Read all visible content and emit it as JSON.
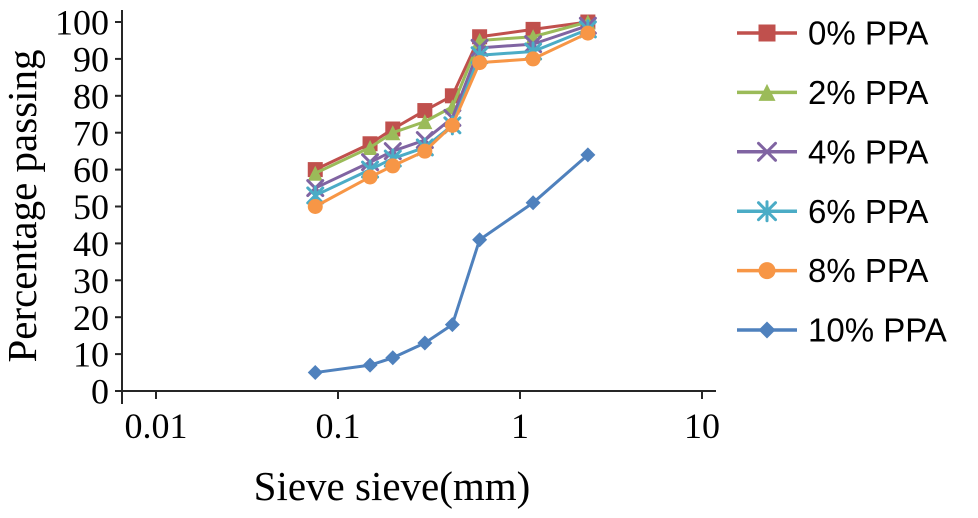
{
  "chart_data": {
    "type": "line",
    "title": "",
    "xlabel": "Sieve sieve(mm)",
    "ylabel": "Percentage  passing",
    "x_scale": "log",
    "xlim": [
      0.01,
      10
    ],
    "ylim": [
      0,
      100
    ],
    "x_ticks": [
      "0.01",
      "0.1",
      "1",
      "10"
    ],
    "y_ticks": [
      0,
      10,
      20,
      30,
      40,
      50,
      60,
      70,
      80,
      90,
      100
    ],
    "grid": false,
    "legend_position": "right",
    "background_color": "#ffffff",
    "axis_color": "#262626",
    "x": [
      0.075,
      0.15,
      0.2,
      0.3,
      0.425,
      0.6,
      1.18,
      2.36
    ],
    "series": [
      {
        "name": "0% PPA",
        "color": "#C0504D",
        "marker": "square",
        "values": [
          60,
          67,
          71,
          76,
          80,
          96,
          98,
          100
        ]
      },
      {
        "name": "2% PPA",
        "color": "#9BBB59",
        "marker": "triangle",
        "values": [
          59,
          66,
          70,
          73,
          77,
          95,
          96,
          100
        ]
      },
      {
        "name": "4% PPA",
        "color": "#8064A2",
        "marker": "x",
        "values": [
          55,
          62,
          65,
          68,
          74,
          93,
          94,
          99
        ]
      },
      {
        "name": "6% PPA",
        "color": "#4BACC6",
        "marker": "star",
        "values": [
          53,
          60,
          63,
          66,
          72,
          91,
          92,
          98
        ]
      },
      {
        "name": "8% PPA",
        "color": "#F79646",
        "marker": "circle",
        "values": [
          50,
          58,
          61,
          65,
          72,
          89,
          90,
          97
        ]
      },
      {
        "name": "10% PPA",
        "color": "#4F81BD",
        "marker": "diamond",
        "values": [
          5,
          7,
          9,
          13,
          18,
          41,
          51,
          64
        ]
      }
    ]
  }
}
